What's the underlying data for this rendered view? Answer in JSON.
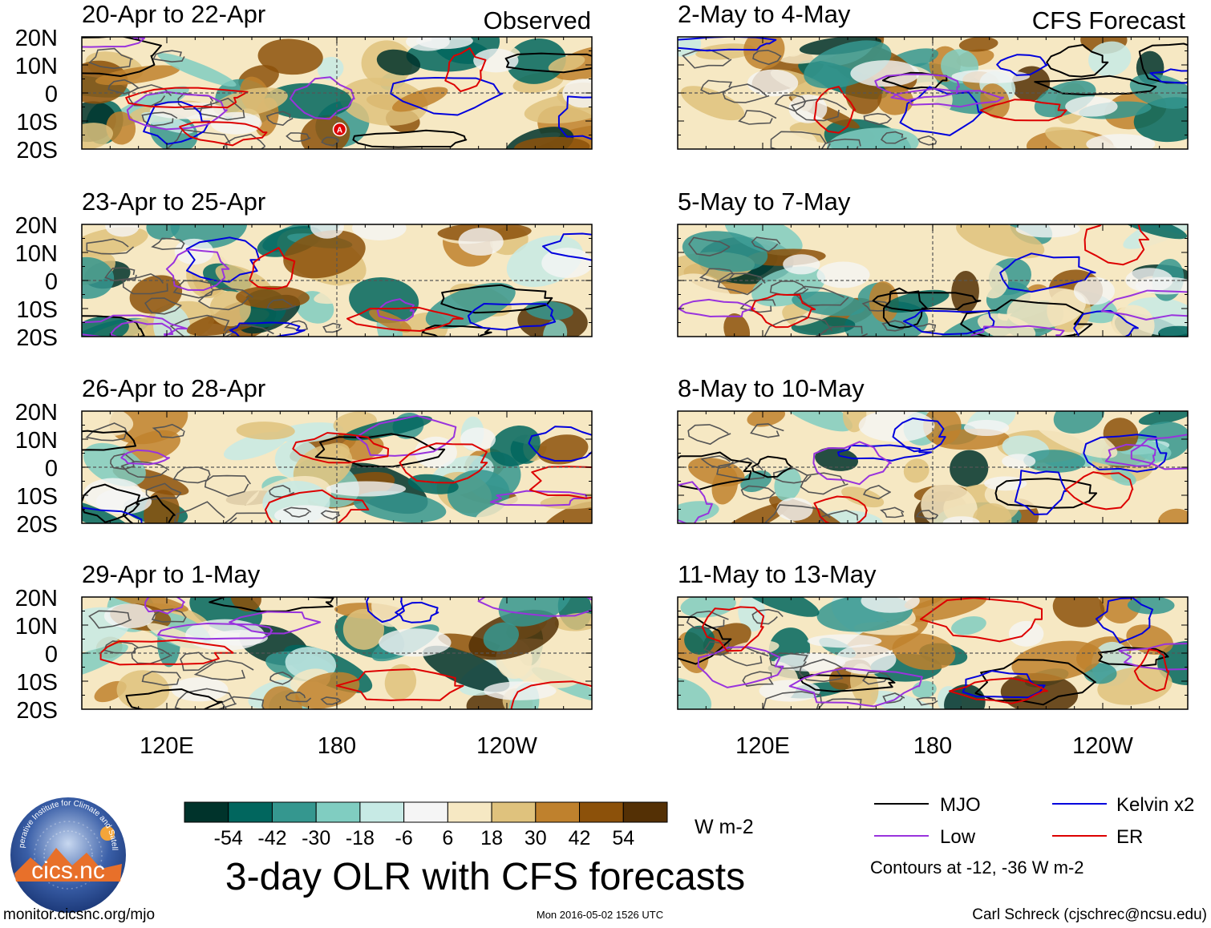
{
  "chart_data": {
    "type": "heatmap",
    "title": "3-day OLR with CFS forecasts",
    "variable": "Outgoing longwave radiation anomaly",
    "units": "W m-2",
    "column_headers": {
      "left": "Observed",
      "right": "CFS Forecast"
    },
    "lat_ticks": [
      "20N",
      "10N",
      "0",
      "10S",
      "20S"
    ],
    "lat_values": [
      20,
      10,
      0,
      -10,
      -20
    ],
    "lon_ticks": [
      "120E",
      "180",
      "120W"
    ],
    "lon_values": [
      120,
      180,
      240
    ],
    "lon_range": [
      90,
      270
    ],
    "lat_range": [
      -20,
      20
    ],
    "panels": [
      {
        "period": "20-Apr to 22-Apr",
        "source": "Observed"
      },
      {
        "period": "23-Apr to 25-Apr",
        "source": "Observed"
      },
      {
        "period": "26-Apr to 28-Apr",
        "source": "Observed"
      },
      {
        "period": "29-Apr to 1-May",
        "source": "Observed"
      },
      {
        "period": "2-May to 4-May",
        "source": "CFS Forecast"
      },
      {
        "period": "5-May to 7-May",
        "source": "CFS Forecast"
      },
      {
        "period": "8-May to 10-May",
        "source": "CFS Forecast"
      },
      {
        "period": "11-May to 13-May",
        "source": "CFS Forecast"
      }
    ],
    "colorbar": {
      "labels": [
        "-54",
        "-42",
        "-30",
        "-18",
        "-6",
        "6",
        "18",
        "30",
        "42",
        "54"
      ],
      "colors": [
        "#00332b",
        "#01665e",
        "#35978f",
        "#80cdc1",
        "#c7eae5",
        "#f5f5f5",
        "#f6e8c3",
        "#dfc27d",
        "#bf812d",
        "#8c510a",
        "#543005"
      ],
      "units_label": "W m-2"
    },
    "contours": {
      "legend": [
        {
          "name": "MJO",
          "color": "#000000"
        },
        {
          "name": "Kelvin x2",
          "color": "#0000dd"
        },
        {
          "name": "Low",
          "color": "#9933dd"
        },
        {
          "name": "ER",
          "color": "#dd0000"
        }
      ],
      "note": "Contours at -12, -36 W m-2"
    },
    "storm_marker": "A"
  },
  "footer": {
    "url": "monitor.cicsnc.org/mjo",
    "timestamp": "Mon 2016-05-02 1526 UTC",
    "author": "Carl Schreck (cjschrec@ncsu.edu)"
  },
  "logo": {
    "name": "cics.nc",
    "ring_text": "Cooperative Institute for Climate and Satellites"
  }
}
